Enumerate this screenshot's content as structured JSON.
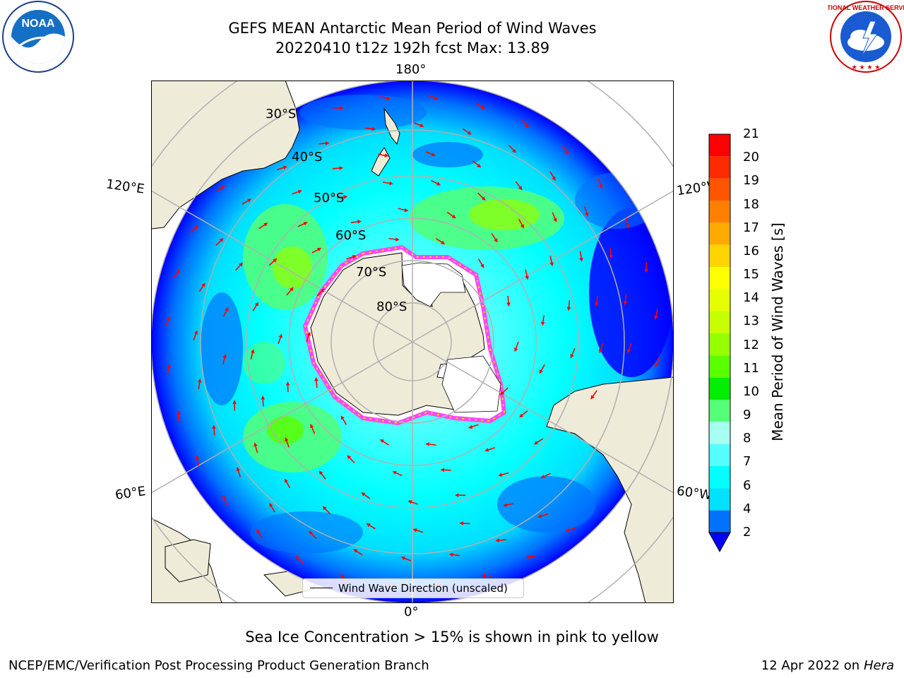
{
  "header": {
    "title_line1": "GEFS MEAN Antarctic Mean Period of Wind Waves",
    "title_line2": "20220410 t12z 192h fcst   Max: 13.89"
  },
  "logos": {
    "noaa_text": "NOAA",
    "noaa_ring": "NATIONAL OCEANIC AND ATMOSPHERIC ADMINISTRATION · U.S. DEPARTMENT OF COMMERCE",
    "nws_ring": "NATIONAL WEATHER SERVICE"
  },
  "map": {
    "lon_labels": {
      "top": "180°",
      "bottom": "0°",
      "left_upper": "120°E",
      "right_upper": "120°W",
      "left_lower": "60°E",
      "right_lower": "60°W"
    },
    "lat_labels": [
      "30°S",
      "40°S",
      "50°S",
      "60°S",
      "70°S",
      "80°S"
    ],
    "legend_label": "Wind Wave Direction (unscaled)",
    "colors": {
      "land": "#efebd9",
      "ice_edge": "#ff44ff",
      "arrow": "#ff0000"
    }
  },
  "colorbar": {
    "label": "Mean Period of Wind Waves [s]",
    "ticks": [
      "21",
      "20",
      "19",
      "18",
      "17",
      "16",
      "15",
      "14",
      "13",
      "12",
      "11",
      "10",
      "9",
      "8",
      "7",
      "6",
      "4",
      "2"
    ],
    "bin_colors": [
      "#ff0000",
      "#ff2a00",
      "#ff5500",
      "#ff8000",
      "#ffaa00",
      "#ffd400",
      "#ffff00",
      "#e6ff00",
      "#c8ff00",
      "#96ff00",
      "#5aff00",
      "#00ee00",
      "#55ff77",
      "#a6fff0",
      "#55ffff",
      "#00ffff",
      "#00e0ff",
      "#0072ff"
    ],
    "under_color": "#0000ff"
  },
  "footer": {
    "note": "Sea Ice Concentration > 15% is shown in pink to yellow",
    "credit": "NCEP/EMC/Verification Post Processing Product Generation Branch",
    "date": "12 Apr 2022 on",
    "host": "Hera"
  }
}
